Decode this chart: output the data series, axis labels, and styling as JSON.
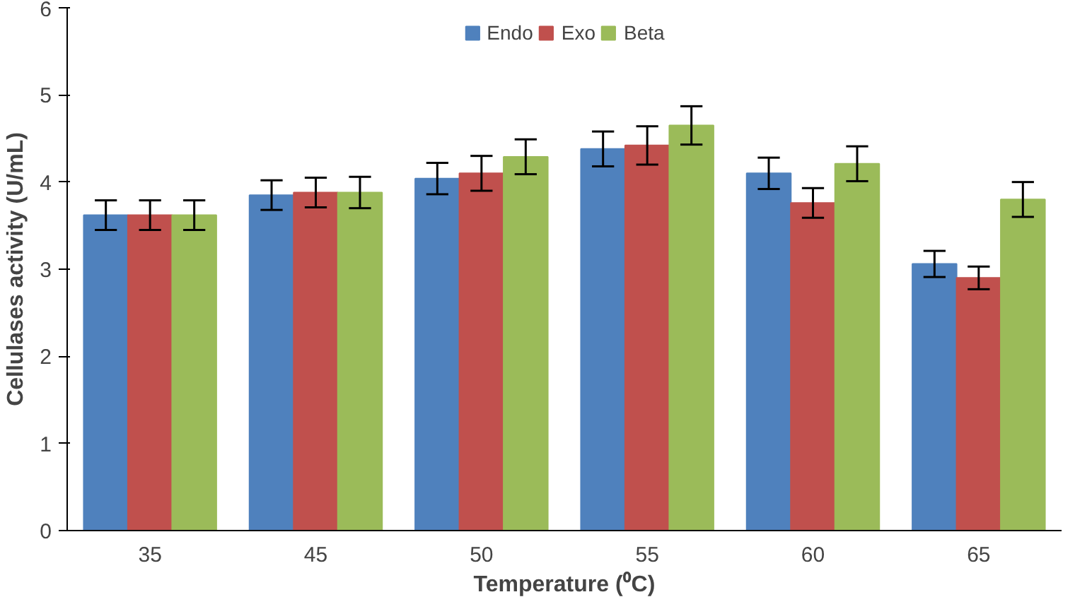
{
  "chart_data": {
    "type": "bar",
    "xlabel": "Temperature (⁰C)",
    "ylabel": "Cellulases activity (U/mL)",
    "categories": [
      "35",
      "45",
      "50",
      "55",
      "60",
      "65"
    ],
    "series": [
      {
        "name": "Endo",
        "color": "#4f81bd",
        "values": [
          3.62,
          3.85,
          4.04,
          4.38,
          4.1,
          3.06
        ],
        "errors": [
          0.17,
          0.17,
          0.18,
          0.2,
          0.18,
          0.15
        ]
      },
      {
        "name": "Exo",
        "color": "#c0504d",
        "values": [
          3.62,
          3.88,
          4.1,
          4.42,
          3.76,
          2.9
        ],
        "errors": [
          0.17,
          0.17,
          0.2,
          0.22,
          0.17,
          0.13
        ]
      },
      {
        "name": "Beta",
        "color": "#9bbb59",
        "values": [
          3.62,
          3.88,
          4.29,
          4.65,
          4.21,
          3.8
        ],
        "errors": [
          0.17,
          0.18,
          0.2,
          0.22,
          0.2,
          0.2
        ]
      }
    ],
    "ylim": [
      0,
      6
    ],
    "yticks": [
      0,
      1,
      2,
      3,
      4,
      5,
      6
    ],
    "grid": false,
    "legend": "top"
  }
}
